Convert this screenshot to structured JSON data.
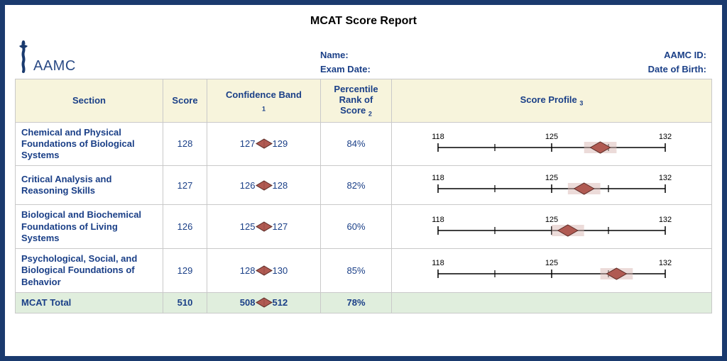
{
  "title": "MCAT Score Report",
  "logo_text": "AAMC",
  "header": {
    "name_label": "Name:",
    "exam_date_label": "Exam Date:",
    "aamc_id_label": "AAMC ID:",
    "dob_label": "Date of Birth:"
  },
  "columns": {
    "section": "Section",
    "score": "Score",
    "band": "Confidence Band",
    "band_sup": "1",
    "pct": "Percentile Rank of Score",
    "pct_sup": "2",
    "profile": "Score Profile",
    "profile_sup": "3"
  },
  "scale": {
    "min": 118,
    "max": 132,
    "ticks": [
      118,
      125,
      132
    ],
    "label_ticks": [
      118,
      125,
      132
    ]
  },
  "rows": [
    {
      "name": "Chemical and Physical Foundations of Biological Systems",
      "score": "128",
      "band_low": "127",
      "band_high": "129",
      "pct": "84%",
      "profile_low": 127,
      "profile_high": 129,
      "profile_point": 128
    },
    {
      "name": "Critical Analysis and Reasoning Skills",
      "score": "127",
      "band_low": "126",
      "band_high": "128",
      "pct": "82%",
      "profile_low": 126,
      "profile_high": 128,
      "profile_point": 127
    },
    {
      "name": "Biological and Biochemical Foundations of Living Systems",
      "score": "126",
      "band_low": "125",
      "band_high": "127",
      "pct": "60%",
      "profile_low": 125,
      "profile_high": 127,
      "profile_point": 126
    },
    {
      "name": "Psychological, Social, and Biological Foundations of Behavior",
      "score": "129",
      "band_low": "128",
      "band_high": "130",
      "pct": "85%",
      "profile_low": 128,
      "profile_high": 130,
      "profile_point": 129
    }
  ],
  "total": {
    "name": "MCAT Total",
    "score": "510",
    "band_low": "508",
    "band_high": "512",
    "pct": "78%"
  },
  "colors": {
    "frame": "#1a3a6e",
    "header_bg": "#f7f4dc",
    "total_bg": "#e0eedd",
    "text_blue": "#1a3f87",
    "border": "#c9c9c9",
    "diamond_fill": "#b05a52",
    "diamond_stroke": "#5a2a25",
    "axis": "#000000"
  }
}
